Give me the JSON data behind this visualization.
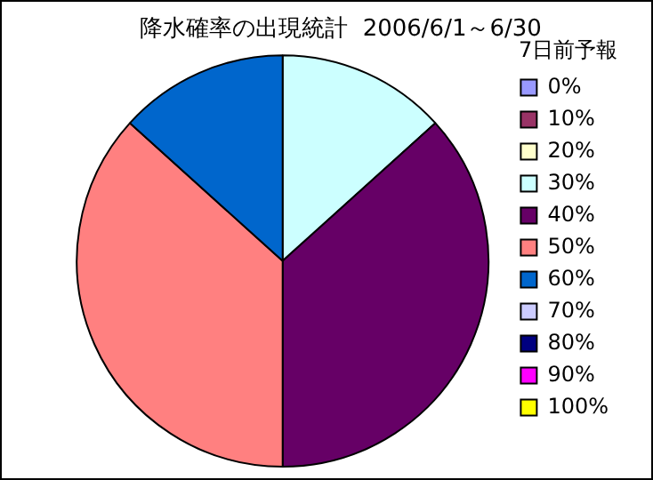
{
  "chart_data": {
    "type": "pie",
    "title": "降水確率の出現統計  2006/6/1～6/30",
    "legend_title": "7日前予報",
    "legend": "right",
    "categories": [
      "0%",
      "10%",
      "20%",
      "30%",
      "40%",
      "50%",
      "60%",
      "70%",
      "80%",
      "90%",
      "100%"
    ],
    "values": [
      0,
      0,
      0,
      13.3,
      36.7,
      36.7,
      13.3,
      0,
      0,
      0,
      0
    ],
    "colors": [
      "#9999ff",
      "#993366",
      "#ffffcc",
      "#ccffff",
      "#660066",
      "#ff8080",
      "#0066cc",
      "#ccccff",
      "#000080",
      "#ff00ff",
      "#ffff00"
    ]
  }
}
